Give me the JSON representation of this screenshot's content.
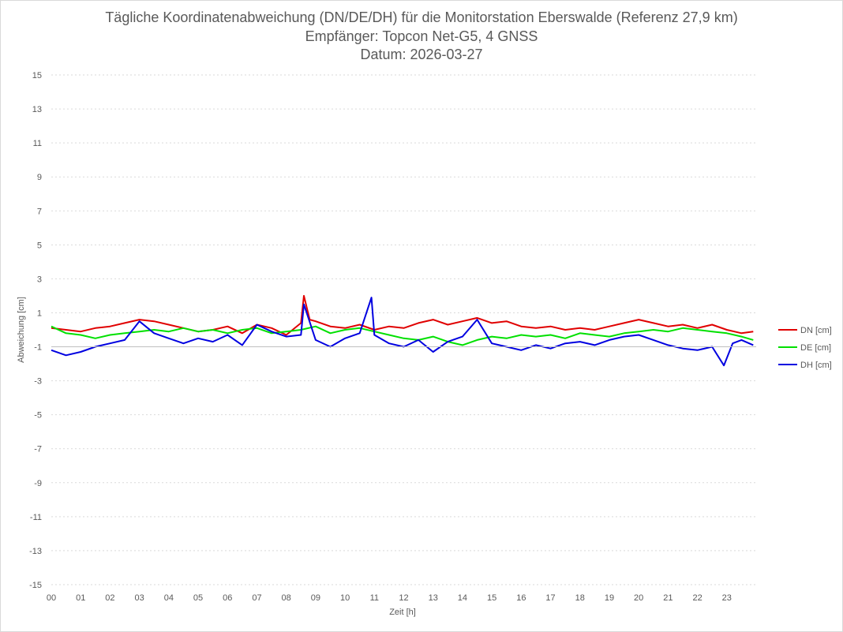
{
  "chart_data": {
    "type": "line",
    "title": [
      "Tägliche Koordinatenabweichung (DN/DE/DH) für die Monitorstation Eberswalde (Referenz 27,9 km)",
      "Empfänger: Topcon Net-G5, 4 GNSS",
      "Datum: 2026-03-27"
    ],
    "xlabel": "Zeit [h]",
    "ylabel": "Abweichung [cm]",
    "xlim": [
      0,
      24
    ],
    "ylim": [
      -15,
      15
    ],
    "x_ticks": [
      "00",
      "01",
      "02",
      "03",
      "04",
      "05",
      "06",
      "07",
      "08",
      "09",
      "10",
      "11",
      "12",
      "13",
      "14",
      "15",
      "16",
      "17",
      "18",
      "19",
      "20",
      "21",
      "22",
      "23"
    ],
    "y_ticks": [
      15,
      13,
      11,
      9,
      7,
      5,
      3,
      1,
      -1,
      -3,
      -5,
      -7,
      -9,
      -11,
      -13,
      -15
    ],
    "grid": true,
    "legend_position": "right",
    "series": [
      {
        "name": "DN [cm]",
        "color": "#e00000",
        "x": [
          0,
          0.5,
          1,
          1.5,
          2,
          2.5,
          3,
          3.5,
          4,
          4.5,
          5,
          5.5,
          6,
          6.5,
          7,
          7.5,
          8,
          8.5,
          8.6,
          8.8,
          9,
          9.5,
          10,
          10.5,
          11,
          11.5,
          12,
          12.5,
          13,
          13.5,
          14,
          14.5,
          15,
          15.5,
          16,
          16.5,
          17,
          17.5,
          18,
          18.5,
          19,
          19.5,
          20,
          20.5,
          21,
          21.5,
          22,
          22.5,
          23,
          23.5,
          23.9
        ],
        "y": [
          0.1,
          0.0,
          -0.1,
          0.1,
          0.2,
          0.4,
          0.6,
          0.5,
          0.3,
          0.1,
          -0.1,
          0.0,
          0.2,
          -0.2,
          0.3,
          0.1,
          -0.3,
          0.4,
          2.0,
          0.6,
          0.5,
          0.2,
          0.1,
          0.3,
          0.0,
          0.2,
          0.1,
          0.4,
          0.6,
          0.3,
          0.5,
          0.7,
          0.4,
          0.5,
          0.2,
          0.1,
          0.2,
          0.0,
          0.1,
          0.0,
          0.2,
          0.4,
          0.6,
          0.4,
          0.2,
          0.3,
          0.1,
          0.3,
          0.0,
          -0.2,
          -0.1
        ]
      },
      {
        "name": "DE [cm]",
        "color": "#00e000",
        "x": [
          0,
          0.5,
          1,
          1.5,
          2,
          2.5,
          3,
          3.5,
          4,
          4.5,
          5,
          5.5,
          6,
          6.5,
          7,
          7.5,
          8,
          8.5,
          9,
          9.5,
          10,
          10.5,
          11,
          11.5,
          12,
          12.5,
          13,
          13.5,
          14,
          14.5,
          15,
          15.5,
          16,
          16.5,
          17,
          17.5,
          18,
          18.5,
          19,
          19.5,
          20,
          20.5,
          21,
          21.5,
          22,
          22.5,
          23,
          23.5,
          23.9
        ],
        "y": [
          0.2,
          -0.2,
          -0.3,
          -0.5,
          -0.3,
          -0.2,
          -0.1,
          0.0,
          -0.1,
          0.1,
          -0.1,
          0.0,
          -0.2,
          0.0,
          0.1,
          -0.2,
          -0.1,
          0.0,
          0.2,
          -0.2,
          0.0,
          0.1,
          -0.1,
          -0.3,
          -0.5,
          -0.6,
          -0.4,
          -0.7,
          -0.9,
          -0.6,
          -0.4,
          -0.5,
          -0.3,
          -0.4,
          -0.3,
          -0.5,
          -0.2,
          -0.3,
          -0.4,
          -0.2,
          -0.1,
          0.0,
          -0.1,
          0.1,
          0.0,
          -0.1,
          -0.2,
          -0.4,
          -0.6
        ]
      },
      {
        "name": "DH [cm]",
        "color": "#0000e0",
        "x": [
          0,
          0.5,
          1,
          1.5,
          2,
          2.5,
          3,
          3.5,
          4,
          4.5,
          5,
          5.5,
          6,
          6.5,
          7,
          7.5,
          8,
          8.5,
          8.6,
          9,
          9.5,
          10,
          10.5,
          10.9,
          11,
          11.5,
          12,
          12.5,
          13,
          13.5,
          14,
          14.5,
          15,
          15.5,
          16,
          16.5,
          17,
          17.5,
          18,
          18.5,
          19,
          19.5,
          20,
          20.5,
          21,
          21.5,
          22,
          22.5,
          22.9,
          23.2,
          23.5,
          23.9
        ],
        "y": [
          -1.2,
          -1.5,
          -1.3,
          -1.0,
          -0.8,
          -0.6,
          0.5,
          -0.2,
          -0.5,
          -0.8,
          -0.5,
          -0.7,
          -0.3,
          -0.9,
          0.3,
          -0.1,
          -0.4,
          -0.3,
          1.5,
          -0.6,
          -1.0,
          -0.5,
          -0.2,
          1.9,
          -0.3,
          -0.8,
          -1.0,
          -0.6,
          -1.3,
          -0.7,
          -0.4,
          0.6,
          -0.8,
          -1.0,
          -1.2,
          -0.9,
          -1.1,
          -0.8,
          -0.7,
          -0.9,
          -0.6,
          -0.4,
          -0.3,
          -0.6,
          -0.9,
          -1.1,
          -1.2,
          -1.0,
          -2.1,
          -0.8,
          -0.6,
          -0.9
        ]
      }
    ]
  }
}
